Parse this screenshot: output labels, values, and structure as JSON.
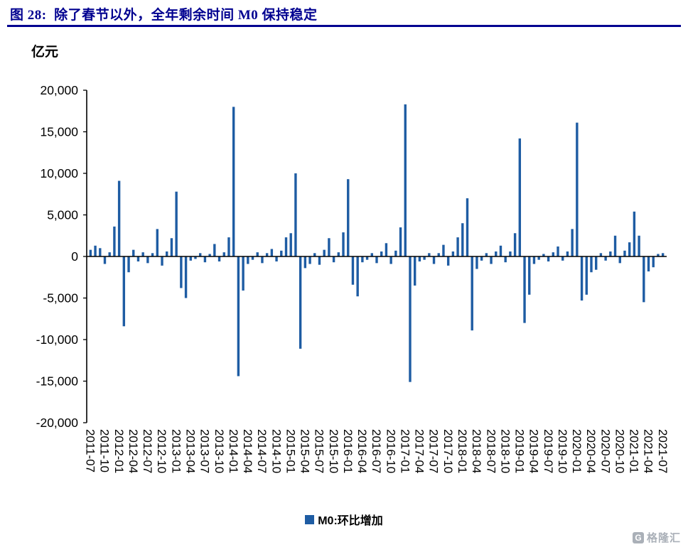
{
  "header": {
    "title": "图 28:  除了春节以外，全年剩余时间 M0 保持稳定"
  },
  "chart_data": {
    "type": "bar",
    "unit_label": "亿元",
    "series_name": "M0:环比增加",
    "bar_color": "#1e5ca3",
    "grid": false,
    "legend_position": "bottom",
    "ylim": [
      -20000,
      20000
    ],
    "y_ticks": [
      20000,
      15000,
      10000,
      5000,
      0,
      -5000,
      -10000,
      -15000,
      -20000
    ],
    "y_tick_labels": [
      "20,000",
      "15,000",
      "10,000",
      "5,000",
      "0",
      "-5,000",
      "-10,000",
      "-15,000",
      "-20,000"
    ],
    "x_label_every": 3,
    "categories": [
      "2011-07",
      "2011-08",
      "2011-09",
      "2011-10",
      "2011-11",
      "2011-12",
      "2012-01",
      "2012-02",
      "2012-03",
      "2012-04",
      "2012-05",
      "2012-06",
      "2012-07",
      "2012-08",
      "2012-09",
      "2012-10",
      "2012-11",
      "2012-12",
      "2013-01",
      "2013-02",
      "2013-03",
      "2013-04",
      "2013-05",
      "2013-06",
      "2013-07",
      "2013-08",
      "2013-09",
      "2013-10",
      "2013-11",
      "2013-12",
      "2014-01",
      "2014-02",
      "2014-03",
      "2014-04",
      "2014-05",
      "2014-06",
      "2014-07",
      "2014-08",
      "2014-09",
      "2014-10",
      "2014-11",
      "2014-12",
      "2015-01",
      "2015-02",
      "2015-03",
      "2015-04",
      "2015-05",
      "2015-06",
      "2015-07",
      "2015-08",
      "2015-09",
      "2015-10",
      "2015-11",
      "2015-12",
      "2016-01",
      "2016-02",
      "2016-03",
      "2016-04",
      "2016-05",
      "2016-06",
      "2016-07",
      "2016-08",
      "2016-09",
      "2016-10",
      "2016-11",
      "2016-12",
      "2017-01",
      "2017-02",
      "2017-03",
      "2017-04",
      "2017-05",
      "2017-06",
      "2017-07",
      "2017-08",
      "2017-09",
      "2017-10",
      "2017-11",
      "2017-12",
      "2018-01",
      "2018-02",
      "2018-03",
      "2018-04",
      "2018-05",
      "2018-06",
      "2018-07",
      "2018-08",
      "2018-09",
      "2018-10",
      "2018-11",
      "2018-12",
      "2019-01",
      "2019-02",
      "2019-03",
      "2019-04",
      "2019-05",
      "2019-06",
      "2019-07",
      "2019-08",
      "2019-09",
      "2019-10",
      "2019-11",
      "2019-12",
      "2020-01",
      "2020-02",
      "2020-03",
      "2020-04",
      "2020-05",
      "2020-06",
      "2020-07",
      "2020-08",
      "2020-09",
      "2020-10",
      "2020-11",
      "2020-12",
      "2021-01",
      "2021-02",
      "2021-03",
      "2021-04",
      "2021-05",
      "2021-06",
      "2021-07"
    ],
    "values": [
      800,
      1300,
      1000,
      -900,
      500,
      3600,
      9100,
      -8400,
      -1900,
      800,
      -600,
      500,
      -800,
      400,
      3300,
      -1100,
      600,
      2200,
      7800,
      -3800,
      -5000,
      -500,
      -300,
      400,
      -700,
      300,
      1500,
      -600,
      500,
      2300,
      18000,
      -14400,
      -4100,
      -900,
      -400,
      500,
      -800,
      400,
      900,
      -600,
      700,
      2300,
      2800,
      10000,
      -11100,
      -1400,
      -900,
      400,
      -1000,
      800,
      2200,
      -700,
      500,
      2900,
      9300,
      -3400,
      -4800,
      -700,
      -400,
      400,
      -800,
      600,
      1600,
      -900,
      700,
      3500,
      18300,
      -15100,
      -3500,
      -600,
      -400,
      400,
      -900,
      400,
      1400,
      -1100,
      600,
      2300,
      4000,
      7000,
      -8900,
      -1500,
      -500,
      400,
      -900,
      600,
      1300,
      -700,
      600,
      2800,
      14200,
      -8000,
      -4600,
      -900,
      -400,
      300,
      -600,
      500,
      1200,
      -500,
      600,
      3300,
      16100,
      -5300,
      -4600,
      -1900,
      -1600,
      400,
      -500,
      600,
      2500,
      -800,
      700,
      1700,
      5400,
      2500,
      -5500,
      -1800,
      -1300,
      300,
      400
    ]
  },
  "watermark": {
    "text": "格隆汇"
  }
}
